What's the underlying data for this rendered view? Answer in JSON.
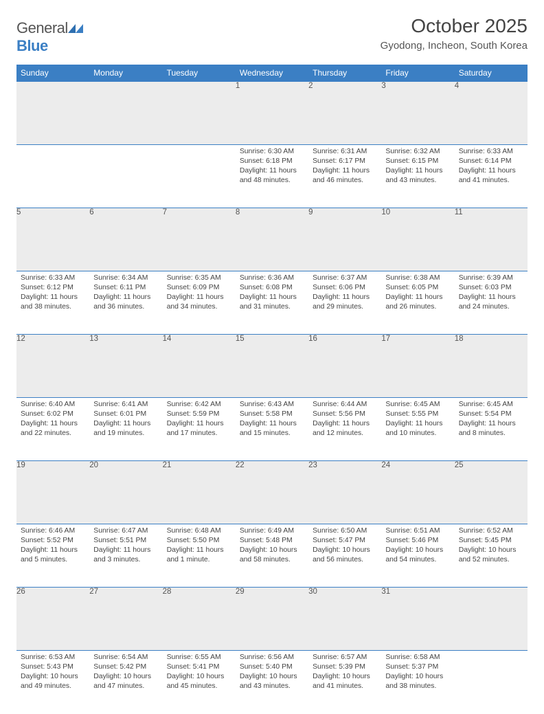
{
  "logo": {
    "word1": "General",
    "word2": "Blue"
  },
  "title": "October 2025",
  "location": "Gyodong, Incheon, South Korea",
  "colors": {
    "header_bg": "#3b7fc4",
    "header_fg": "#ffffff",
    "daynum_bg": "#ececec",
    "text": "#444444",
    "rule": "#3b7fc4",
    "page_bg": "#ffffff"
  },
  "typography": {
    "title_fontsize": 28,
    "location_fontsize": 15,
    "header_fontsize": 12,
    "daynum_fontsize": 11.5,
    "cell_fontsize": 10.4
  },
  "weekdays": [
    "Sunday",
    "Monday",
    "Tuesday",
    "Wednesday",
    "Thursday",
    "Friday",
    "Saturday"
  ],
  "weeks": [
    {
      "nums": [
        "",
        "",
        "",
        "1",
        "2",
        "3",
        "4"
      ],
      "cells": [
        null,
        null,
        null,
        {
          "sunrise": "Sunrise: 6:30 AM",
          "sunset": "Sunset: 6:18 PM",
          "daylight": "Daylight: 11 hours and 48 minutes."
        },
        {
          "sunrise": "Sunrise: 6:31 AM",
          "sunset": "Sunset: 6:17 PM",
          "daylight": "Daylight: 11 hours and 46 minutes."
        },
        {
          "sunrise": "Sunrise: 6:32 AM",
          "sunset": "Sunset: 6:15 PM",
          "daylight": "Daylight: 11 hours and 43 minutes."
        },
        {
          "sunrise": "Sunrise: 6:33 AM",
          "sunset": "Sunset: 6:14 PM",
          "daylight": "Daylight: 11 hours and 41 minutes."
        }
      ]
    },
    {
      "nums": [
        "5",
        "6",
        "7",
        "8",
        "9",
        "10",
        "11"
      ],
      "cells": [
        {
          "sunrise": "Sunrise: 6:33 AM",
          "sunset": "Sunset: 6:12 PM",
          "daylight": "Daylight: 11 hours and 38 minutes."
        },
        {
          "sunrise": "Sunrise: 6:34 AM",
          "sunset": "Sunset: 6:11 PM",
          "daylight": "Daylight: 11 hours and 36 minutes."
        },
        {
          "sunrise": "Sunrise: 6:35 AM",
          "sunset": "Sunset: 6:09 PM",
          "daylight": "Daylight: 11 hours and 34 minutes."
        },
        {
          "sunrise": "Sunrise: 6:36 AM",
          "sunset": "Sunset: 6:08 PM",
          "daylight": "Daylight: 11 hours and 31 minutes."
        },
        {
          "sunrise": "Sunrise: 6:37 AM",
          "sunset": "Sunset: 6:06 PM",
          "daylight": "Daylight: 11 hours and 29 minutes."
        },
        {
          "sunrise": "Sunrise: 6:38 AM",
          "sunset": "Sunset: 6:05 PM",
          "daylight": "Daylight: 11 hours and 26 minutes."
        },
        {
          "sunrise": "Sunrise: 6:39 AM",
          "sunset": "Sunset: 6:03 PM",
          "daylight": "Daylight: 11 hours and 24 minutes."
        }
      ]
    },
    {
      "nums": [
        "12",
        "13",
        "14",
        "15",
        "16",
        "17",
        "18"
      ],
      "cells": [
        {
          "sunrise": "Sunrise: 6:40 AM",
          "sunset": "Sunset: 6:02 PM",
          "daylight": "Daylight: 11 hours and 22 minutes."
        },
        {
          "sunrise": "Sunrise: 6:41 AM",
          "sunset": "Sunset: 6:01 PM",
          "daylight": "Daylight: 11 hours and 19 minutes."
        },
        {
          "sunrise": "Sunrise: 6:42 AM",
          "sunset": "Sunset: 5:59 PM",
          "daylight": "Daylight: 11 hours and 17 minutes."
        },
        {
          "sunrise": "Sunrise: 6:43 AM",
          "sunset": "Sunset: 5:58 PM",
          "daylight": "Daylight: 11 hours and 15 minutes."
        },
        {
          "sunrise": "Sunrise: 6:44 AM",
          "sunset": "Sunset: 5:56 PM",
          "daylight": "Daylight: 11 hours and 12 minutes."
        },
        {
          "sunrise": "Sunrise: 6:45 AM",
          "sunset": "Sunset: 5:55 PM",
          "daylight": "Daylight: 11 hours and 10 minutes."
        },
        {
          "sunrise": "Sunrise: 6:45 AM",
          "sunset": "Sunset: 5:54 PM",
          "daylight": "Daylight: 11 hours and 8 minutes."
        }
      ]
    },
    {
      "nums": [
        "19",
        "20",
        "21",
        "22",
        "23",
        "24",
        "25"
      ],
      "cells": [
        {
          "sunrise": "Sunrise: 6:46 AM",
          "sunset": "Sunset: 5:52 PM",
          "daylight": "Daylight: 11 hours and 5 minutes."
        },
        {
          "sunrise": "Sunrise: 6:47 AM",
          "sunset": "Sunset: 5:51 PM",
          "daylight": "Daylight: 11 hours and 3 minutes."
        },
        {
          "sunrise": "Sunrise: 6:48 AM",
          "sunset": "Sunset: 5:50 PM",
          "daylight": "Daylight: 11 hours and 1 minute."
        },
        {
          "sunrise": "Sunrise: 6:49 AM",
          "sunset": "Sunset: 5:48 PM",
          "daylight": "Daylight: 10 hours and 58 minutes."
        },
        {
          "sunrise": "Sunrise: 6:50 AM",
          "sunset": "Sunset: 5:47 PM",
          "daylight": "Daylight: 10 hours and 56 minutes."
        },
        {
          "sunrise": "Sunrise: 6:51 AM",
          "sunset": "Sunset: 5:46 PM",
          "daylight": "Daylight: 10 hours and 54 minutes."
        },
        {
          "sunrise": "Sunrise: 6:52 AM",
          "sunset": "Sunset: 5:45 PM",
          "daylight": "Daylight: 10 hours and 52 minutes."
        }
      ]
    },
    {
      "nums": [
        "26",
        "27",
        "28",
        "29",
        "30",
        "31",
        ""
      ],
      "cells": [
        {
          "sunrise": "Sunrise: 6:53 AM",
          "sunset": "Sunset: 5:43 PM",
          "daylight": "Daylight: 10 hours and 49 minutes."
        },
        {
          "sunrise": "Sunrise: 6:54 AM",
          "sunset": "Sunset: 5:42 PM",
          "daylight": "Daylight: 10 hours and 47 minutes."
        },
        {
          "sunrise": "Sunrise: 6:55 AM",
          "sunset": "Sunset: 5:41 PM",
          "daylight": "Daylight: 10 hours and 45 minutes."
        },
        {
          "sunrise": "Sunrise: 6:56 AM",
          "sunset": "Sunset: 5:40 PM",
          "daylight": "Daylight: 10 hours and 43 minutes."
        },
        {
          "sunrise": "Sunrise: 6:57 AM",
          "sunset": "Sunset: 5:39 PM",
          "daylight": "Daylight: 10 hours and 41 minutes."
        },
        {
          "sunrise": "Sunrise: 6:58 AM",
          "sunset": "Sunset: 5:37 PM",
          "daylight": "Daylight: 10 hours and 38 minutes."
        },
        null
      ]
    }
  ]
}
